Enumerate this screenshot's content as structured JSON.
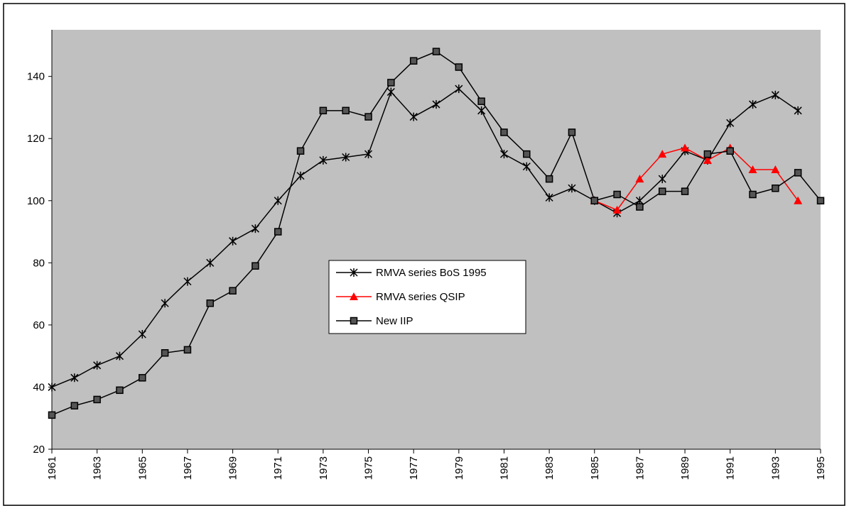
{
  "chart_data": {
    "type": "line",
    "x": [
      1961,
      1962,
      1963,
      1964,
      1965,
      1966,
      1967,
      1968,
      1969,
      1970,
      1971,
      1972,
      1973,
      1974,
      1975,
      1976,
      1977,
      1978,
      1979,
      1980,
      1981,
      1982,
      1983,
      1984,
      1985,
      1986,
      1987,
      1988,
      1989,
      1990,
      1991,
      1992,
      1993,
      1994,
      1995
    ],
    "series": [
      {
        "name": "RMVA series BoS 1995",
        "color": "#000000",
        "marker": "star",
        "values": [
          40,
          43,
          47,
          50,
          57,
          67,
          74,
          80,
          87,
          91,
          100,
          108,
          113,
          114,
          115,
          135,
          127,
          131,
          136,
          129,
          115,
          111,
          101,
          104,
          100,
          96,
          100,
          107,
          116,
          113,
          125,
          131,
          134,
          129,
          null
        ]
      },
      {
        "name": "RMVA series QSIP",
        "color": "#ff0000",
        "marker": "triangle",
        "values": [
          null,
          null,
          null,
          null,
          null,
          null,
          null,
          null,
          null,
          null,
          null,
          null,
          null,
          null,
          null,
          null,
          null,
          null,
          null,
          null,
          null,
          null,
          null,
          null,
          100,
          97,
          107,
          115,
          117,
          113,
          117,
          110,
          110,
          100,
          null
        ]
      },
      {
        "name": "New IIP",
        "color": "#000000",
        "marker": "square",
        "values": [
          31,
          34,
          36,
          39,
          43,
          51,
          52,
          67,
          71,
          79,
          90,
          116,
          129,
          129,
          127,
          138,
          145,
          148,
          143,
          132,
          122,
          115,
          107,
          122,
          100,
          102,
          98,
          103,
          103,
          115,
          116,
          102,
          104,
          109,
          100
        ]
      }
    ],
    "xlim": [
      1961,
      1995
    ],
    "xticks": [
      1961,
      1963,
      1965,
      1967,
      1969,
      1971,
      1973,
      1975,
      1977,
      1979,
      1981,
      1983,
      1985,
      1987,
      1989,
      1991,
      1993,
      1995
    ],
    "ylim": [
      20,
      155
    ],
    "yticks": [
      20,
      40,
      60,
      80,
      100,
      120,
      140
    ],
    "plot_background": "#c0c0c0",
    "legend": "center"
  }
}
